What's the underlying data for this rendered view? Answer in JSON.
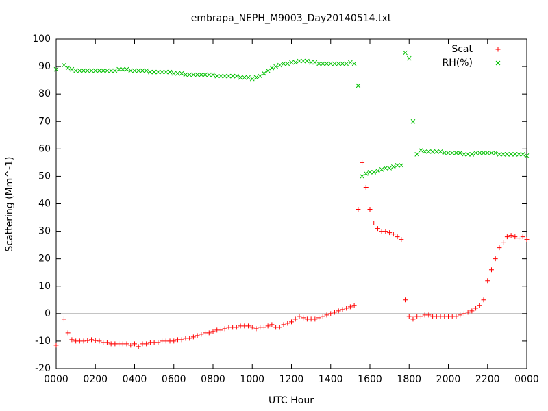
{
  "chart_data": {
    "type": "scatter",
    "title": "embrapa_NEPH_M9003_Day20140514.txt",
    "x_label": "UTC Hour",
    "y_label": "Scattering (Mm^-1)",
    "x": [
      0,
      0.2,
      0.4,
      0.6,
      0.8,
      1,
      1.2,
      1.4,
      1.6,
      1.8,
      2,
      2.2,
      2.4,
      2.6,
      2.8,
      3,
      3.2,
      3.4,
      3.6,
      3.8,
      4,
      4.2,
      4.4,
      4.6,
      4.8,
      5,
      5.2,
      5.4,
      5.6,
      5.8,
      6,
      6.2,
      6.4,
      6.6,
      6.8,
      7,
      7.2,
      7.4,
      7.6,
      7.8,
      8,
      8.2,
      8.4,
      8.6,
      8.8,
      9,
      9.2,
      9.4,
      9.6,
      9.8,
      10,
      10.2,
      10.4,
      10.6,
      10.8,
      11,
      11.2,
      11.4,
      11.6,
      11.8,
      12,
      12.2,
      12.4,
      12.6,
      12.8,
      13,
      13.2,
      13.4,
      13.6,
      13.8,
      14,
      14.2,
      14.4,
      14.6,
      14.8,
      15,
      15.2,
      15.4,
      15.6,
      15.8,
      16,
      16.2,
      16.4,
      16.6,
      16.8,
      17,
      17.2,
      17.4,
      17.6,
      17.8,
      18,
      18.2,
      18.4,
      18.6,
      18.8,
      19,
      19.2,
      19.4,
      19.6,
      19.8,
      20,
      20.2,
      20.4,
      20.6,
      20.8,
      21,
      21.2,
      21.4,
      21.6,
      21.8,
      22,
      22.2,
      22.4,
      22.6,
      22.8,
      23,
      23.2,
      23.4,
      23.6,
      23.8,
      24
    ],
    "series": [
      {
        "name": "Scat",
        "color": "#ff0000",
        "marker": "plus",
        "values": [
          -11.5,
          null,
          -2,
          -7,
          -9.5,
          -10,
          -10,
          -10,
          -9.8,
          -9.5,
          -9.8,
          -10,
          -10.5,
          -10.5,
          -11,
          -11,
          -11,
          -11,
          -11,
          -11.5,
          -11,
          -12,
          -11,
          -11,
          -10.5,
          -10.5,
          -10.5,
          -10,
          -10,
          -10,
          -10,
          -9.5,
          -9.5,
          -9,
          -9,
          -8.5,
          -8,
          -7.5,
          -7,
          -7,
          -6.5,
          -6,
          -6,
          -5.5,
          -5,
          -5,
          -5,
          -4.5,
          -4.5,
          -4.5,
          -5,
          -5.5,
          -5,
          -5,
          -4.5,
          -4,
          -5,
          -5,
          -4,
          -3.5,
          -3,
          -2,
          -1,
          -1.5,
          -2,
          -2,
          -2,
          -1.5,
          -1,
          -0.5,
          0,
          0.5,
          1,
          1.5,
          2,
          2.5,
          3,
          38,
          55,
          46,
          38,
          33,
          31,
          30,
          30,
          29.5,
          29,
          28,
          27,
          5,
          -1,
          -2,
          -1,
          -1,
          -0.5,
          -0.5,
          -1,
          -1,
          -1,
          -1,
          -1,
          -1,
          -1,
          -0.5,
          0,
          0.5,
          1,
          2,
          3,
          5,
          12,
          16,
          20,
          24,
          26,
          28,
          28.5,
          28,
          27.5,
          28,
          27
        ]
      },
      {
        "name": "RH(%)",
        "color": "#00c000",
        "marker": "cross",
        "values": [
          89,
          null,
          90.5,
          89.5,
          89,
          88.5,
          88.5,
          88.5,
          88.5,
          88.5,
          88.5,
          88.5,
          88.5,
          88.5,
          88.5,
          88.5,
          89,
          89,
          89,
          88.5,
          88.5,
          88.5,
          88.5,
          88.5,
          88,
          88,
          88,
          88,
          88,
          88,
          87.5,
          87.5,
          87.5,
          87,
          87,
          87,
          87,
          87,
          87,
          87,
          87,
          86.5,
          86.5,
          86.5,
          86.5,
          86.5,
          86.5,
          86,
          86,
          86,
          85.5,
          86,
          86.5,
          87.5,
          88.5,
          89.5,
          90,
          90.5,
          91,
          91,
          91.5,
          91.5,
          92,
          92,
          92,
          91.5,
          91.5,
          91,
          91,
          91,
          91,
          91,
          91,
          91,
          91,
          91.5,
          91,
          83,
          50,
          51,
          51.5,
          51.5,
          52,
          52.5,
          53,
          53,
          53.5,
          54,
          54,
          95,
          93,
          70,
          58,
          59.5,
          59,
          59,
          59,
          59,
          59,
          58.5,
          58.5,
          58.5,
          58.5,
          58.5,
          58,
          58,
          58,
          58.5,
          58.5,
          58.5,
          58.5,
          58.5,
          58.5,
          58,
          58,
          58,
          58,
          58,
          58,
          58,
          57.5
        ]
      }
    ],
    "xlim": [
      0,
      24
    ],
    "ylim": [
      -20,
      100
    ],
    "xticks": [
      {
        "value": 0,
        "label": "0000"
      },
      {
        "value": 2,
        "label": "0200"
      },
      {
        "value": 4,
        "label": "0400"
      },
      {
        "value": 6,
        "label": "0600"
      },
      {
        "value": 8,
        "label": "0800"
      },
      {
        "value": 10,
        "label": "1000"
      },
      {
        "value": 12,
        "label": "1200"
      },
      {
        "value": 14,
        "label": "1400"
      },
      {
        "value": 16,
        "label": "1600"
      },
      {
        "value": 18,
        "label": "1800"
      },
      {
        "value": 20,
        "label": "2000"
      },
      {
        "value": 22,
        "label": "2200"
      },
      {
        "value": 24,
        "label": "0000"
      }
    ],
    "yticks": [
      -20,
      -10,
      0,
      10,
      20,
      30,
      40,
      50,
      60,
      70,
      80,
      90,
      100
    ],
    "zero_line": true,
    "legend": "top-right"
  }
}
